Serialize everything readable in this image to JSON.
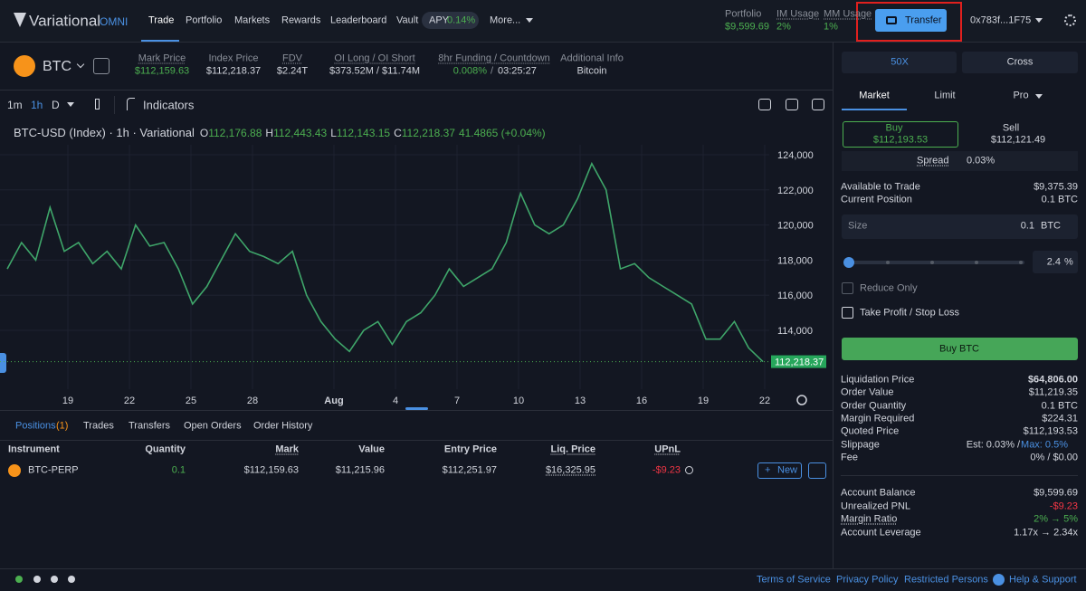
{
  "nav": {
    "logo": "Variational",
    "logo_sub": "OMNI",
    "links": [
      "Trade",
      "Portfolio",
      "Markets",
      "Rewards",
      "Leaderboard",
      "Vault"
    ],
    "apy_label": "APY",
    "apy": "0.14%",
    "more": "More..."
  },
  "account_stats": [
    {
      "label": "Portfolio",
      "value": "$9,599.69"
    },
    {
      "label": "IM Usage",
      "value": "2%"
    },
    {
      "label": "MM Usage",
      "value": "1%"
    }
  ],
  "transfer": "Transfer",
  "wallet": "0x783f...1F75",
  "ticker": {
    "symbol": "BTC",
    "stats": [
      {
        "label": "Mark Price",
        "value": "$112,159.63"
      },
      {
        "label": "Index Price",
        "value": "$112,218.37"
      },
      {
        "label": "FDV",
        "value": "$2.24T"
      },
      {
        "label": "OI Long / OI Short",
        "value": "$373.52M / $11.74M"
      },
      {
        "label": "8hr Funding / Countdown",
        "value": "0.008%",
        "sep": "/",
        "value2": "03:25:27"
      },
      {
        "label": "Additional Info",
        "value": "Bitcoin"
      }
    ]
  },
  "toolbar": {
    "intervals": [
      "1m",
      "1h",
      "D"
    ],
    "indicators": "Indicators"
  },
  "chart": {
    "legend": "BTC-USD (Index) · 1h · Variational",
    "ohlc": [
      {
        "label": "O",
        "value": "112,176.88"
      },
      {
        "label": "H",
        "value": "112,443.43"
      },
      {
        "label": "L",
        "value": "112,143.15"
      },
      {
        "label": "C",
        "value": "112,218.37"
      }
    ],
    "change": "41.4865 (+0.04%)",
    "ylim": [
      110650,
      124825
    ],
    "yticks": [
      {
        "value": 114000,
        "label": "114,000"
      },
      {
        "value": 116000,
        "label": "116,000"
      },
      {
        "value": 118000,
        "label": "118,000"
      },
      {
        "value": 120000,
        "label": "120,000"
      },
      {
        "value": 122000,
        "label": "122,000"
      },
      {
        "value": 124000,
        "label": "124,000"
      }
    ],
    "xlabels": [
      "19",
      "22",
      "25",
      "28",
      "Aug",
      "4",
      "7",
      "10",
      "13",
      "16",
      "19",
      "22"
    ],
    "values": [
      117500,
      119000,
      118000,
      121000,
      118500,
      119000,
      117800,
      118500,
      117500,
      120000,
      118800,
      119000,
      117500,
      115500,
      116500,
      118000,
      119500,
      118500,
      118200,
      117800,
      118500,
      116000,
      114500,
      113500,
      112800,
      114000,
      114500,
      113200,
      114500,
      115000,
      116000,
      117500,
      116500,
      117000,
      117500,
      119000,
      121800,
      120000,
      119500,
      120000,
      121500,
      123500,
      122000,
      117500,
      117800,
      117000,
      116500,
      116000,
      115500,
      113500,
      113500,
      114500,
      113000,
      112218.37
    ],
    "last_price": {
      "value": 112218.37,
      "label": "112,218.37"
    }
  },
  "positions": {
    "tabs": [
      "Positions",
      "Trades",
      "Transfers",
      "Open Orders",
      "Order History"
    ],
    "count": "(1)",
    "columns": [
      "Instrument",
      "Quantity",
      "Mark",
      "Value",
      "Entry Price",
      "Liq. Price",
      "UPnL"
    ],
    "rows": [
      [
        "BTC-PERP",
        "0.1",
        "$112,159.63",
        "$11,215.96",
        "$112,251.97",
        "$16,325.95",
        "-$9.23"
      ]
    ],
    "new": "New"
  },
  "order": {
    "leverage": "50X",
    "margin_mode": "Cross",
    "types": [
      "Market",
      "Limit",
      "Pro"
    ],
    "buy": {
      "label": "Buy",
      "price": "$112,193.53"
    },
    "sell": {
      "label": "Sell",
      "price": "$112,121.49"
    },
    "spread_label": "Spread",
    "spread": "0.03%",
    "info": [
      {
        "label": "Available to Trade",
        "value": "$9,375.39"
      },
      {
        "label": "Current Position",
        "value": "0.1 BTC"
      }
    ],
    "size_label": "Size",
    "size": "0.1",
    "size_unit": "BTC",
    "slider_pct": "2.4",
    "pct_sign": "%",
    "reduce_only": "Reduce Only",
    "tpsl": "Take Profit / Stop Loss",
    "submit": "Buy BTC",
    "details": [
      {
        "label": "Liquidation Price",
        "value": "$64,806.00"
      },
      {
        "label": "Order Value",
        "value": "$11,219.35"
      },
      {
        "label": "Order Quantity",
        "value": "0.1 BTC"
      },
      {
        "label": "Margin Required",
        "value": "$224.31"
      },
      {
        "label": "Quoted Price",
        "value": "$112,193.53"
      },
      {
        "label": "Slippage",
        "value": "Est: 0.03%",
        "sep": "/",
        "value2": "Max: 0.5%"
      },
      {
        "label": "Fee",
        "value": "0% / $0.00"
      }
    ],
    "account": [
      {
        "label": "Account Balance",
        "value": "$9,599.69"
      },
      {
        "label": "Unrealized PNL",
        "value": "-$9.23"
      },
      {
        "label": "Margin Ratio",
        "value": "2% → 5%"
      },
      {
        "label": "Account Leverage",
        "value": "1.17x → 2.34x"
      }
    ]
  },
  "footer": {
    "links": [
      "Terms of Service",
      "Privacy Policy",
      "Restricted Persons",
      "Help & Support"
    ]
  }
}
